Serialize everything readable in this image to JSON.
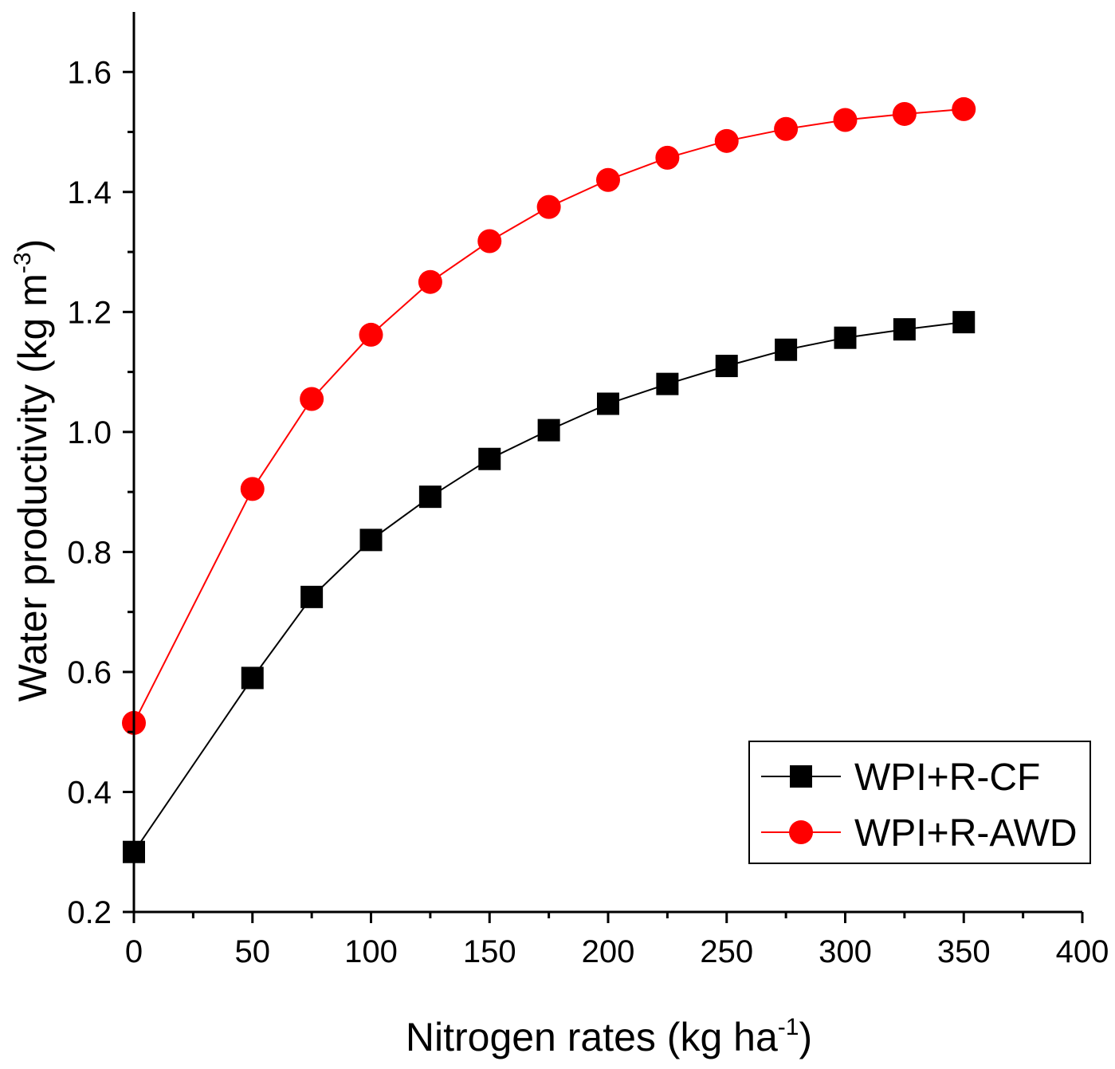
{
  "chart_data": {
    "type": "line",
    "title": "",
    "xlabel": "Nitrogen rates (kg ha",
    "xlabel_sup": "-1",
    "xlabel_end": ")",
    "ylabel": "Water productivity (kg m",
    "ylabel_sup": "-3",
    "ylabel_end": ")",
    "xlim": [
      0,
      400
    ],
    "ylim": [
      0.2,
      1.7
    ],
    "xticks": [
      0,
      50,
      100,
      150,
      200,
      250,
      300,
      350,
      400
    ],
    "xtick_labels": [
      "0",
      "50",
      "100",
      "150",
      "200",
      "250",
      "300",
      "350",
      "400"
    ],
    "yticks": [
      0.2,
      0.4,
      0.6,
      0.8,
      1.0,
      1.2,
      1.4,
      1.6
    ],
    "ytick_labels": [
      "0.2",
      "0.4",
      "0.6",
      "0.8",
      "1.0",
      "1.2",
      "1.4",
      "1.6"
    ],
    "grid": false,
    "legend_position": "bottom-right",
    "x": [
      0,
      50,
      75,
      100,
      125,
      150,
      175,
      200,
      225,
      250,
      275,
      300,
      325,
      350
    ],
    "series": [
      {
        "name": "WPI+R-CF",
        "color": "#000000",
        "marker": "square",
        "values": [
          0.3,
          0.59,
          0.725,
          0.82,
          0.892,
          0.955,
          1.003,
          1.047,
          1.08,
          1.11,
          1.137,
          1.157,
          1.171,
          1.183
        ]
      },
      {
        "name": "WPI+R-AWD",
        "color": "#ff0000",
        "marker": "circle",
        "values": [
          0.515,
          0.905,
          1.055,
          1.162,
          1.25,
          1.318,
          1.375,
          1.42,
          1.457,
          1.485,
          1.505,
          1.52,
          1.53,
          1.538
        ]
      }
    ]
  }
}
